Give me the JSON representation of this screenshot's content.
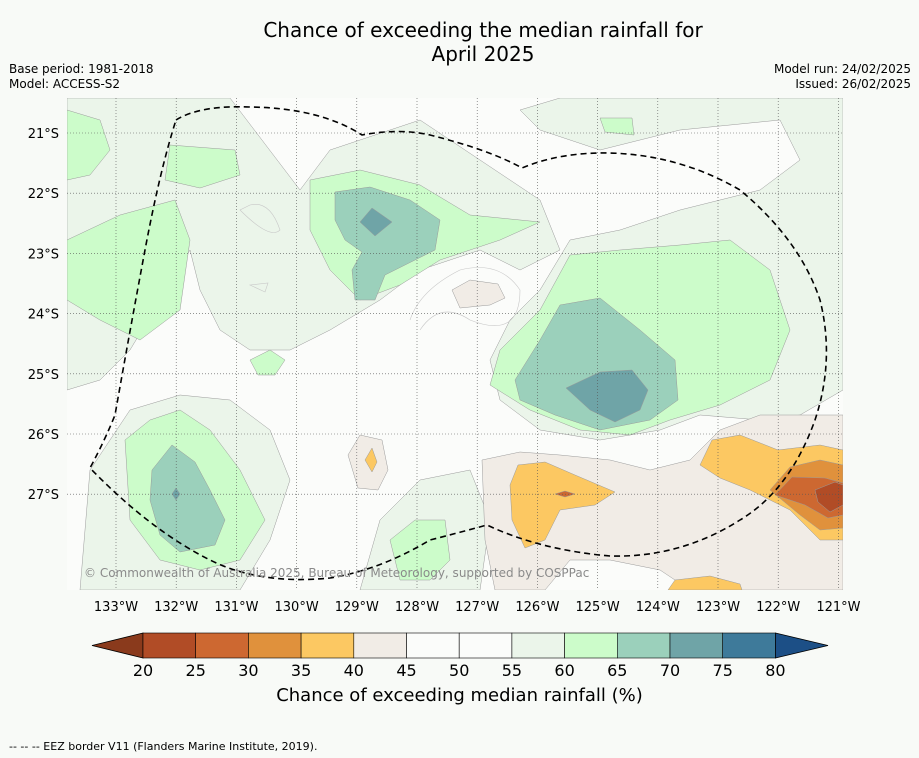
{
  "title": {
    "line1": "Chance of exceeding the median rainfall for",
    "line2": "April 2025"
  },
  "meta_left": {
    "base_period": "Base period: 1981-2018",
    "model": "Model: ACCESS-S2"
  },
  "meta_right": {
    "model_run": "Model run: 24/02/2025",
    "issued": "Issued: 26/02/2025"
  },
  "map": {
    "lon_labels": [
      "133°W",
      "132°W",
      "131°W",
      "130°W",
      "129°W",
      "128°W",
      "127°W",
      "126°W",
      "125°W",
      "124°W",
      "123°W",
      "122°W",
      "121°W"
    ],
    "lat_labels": [
      "21°S",
      "22°S",
      "23°S",
      "24°S",
      "25°S",
      "26°S",
      "27°S"
    ],
    "copyright": "© Commonwealth of Australia 2025, Bureau of Meteorology, supported by COSPPac",
    "colors": {
      "c20_25": "#b14c26",
      "c25_30": "#cd6831",
      "c30_35": "#e0913c",
      "c35_40": "#fcc862",
      "c40_45": "#f1ece6",
      "c45_55": "#fbfcfa",
      "c55_60": "#ebf5ea",
      "c60_65": "#ccfcca",
      "c65_70": "#9bd0bb",
      "c70_75": "#6fa4a7",
      "c75_80": "#3e7a9a",
      "below": "#8a3a1c",
      "above": "#1c4f86"
    }
  },
  "colorbar": {
    "labels": [
      "20",
      "25",
      "30",
      "35",
      "40",
      "45",
      "50",
      "55",
      "60",
      "65",
      "70",
      "75",
      "80"
    ],
    "title": "Chance of exceeding median rainfall (%)"
  },
  "footer": "--  --  -- EEZ border V11 (Flanders Marine Institute, 2019)."
}
